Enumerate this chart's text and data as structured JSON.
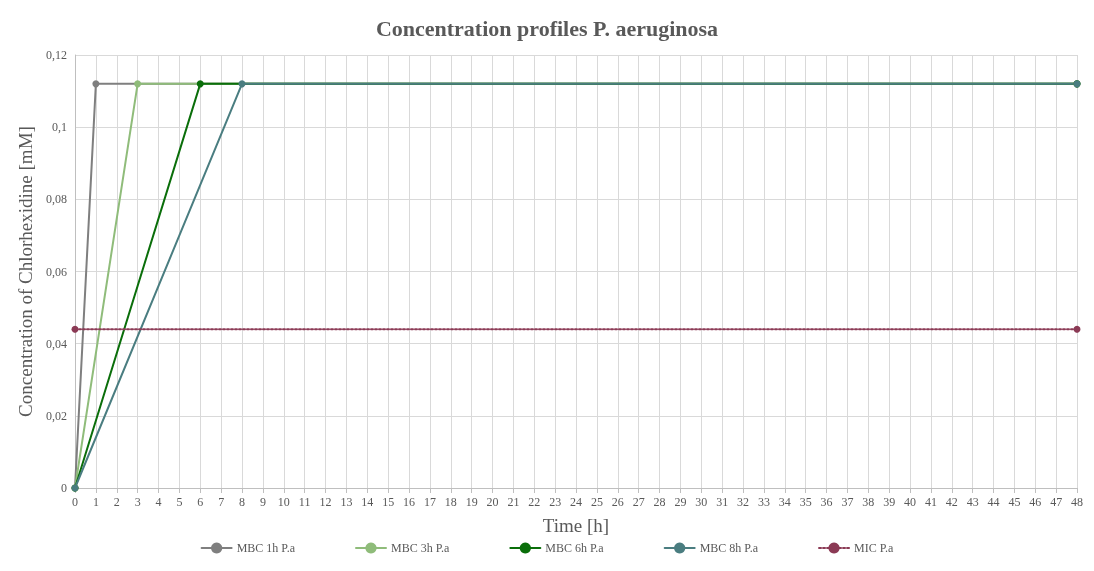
{
  "chart_data": {
    "type": "line",
    "title": "Concentration profiles P. aeruginosa",
    "xlabel": "Time [h]",
    "ylabel": "Concentration of Chlorhexidine [mM]",
    "xlim": [
      0,
      48
    ],
    "xticks": [
      0,
      1,
      2,
      3,
      4,
      5,
      6,
      7,
      8,
      9,
      10,
      11,
      12,
      13,
      14,
      15,
      16,
      17,
      18,
      19,
      20,
      21,
      22,
      23,
      24,
      25,
      26,
      27,
      28,
      29,
      30,
      31,
      32,
      33,
      34,
      35,
      36,
      37,
      38,
      39,
      40,
      41,
      42,
      43,
      44,
      45,
      46,
      47,
      48
    ],
    "ylim": [
      0,
      0.12
    ],
    "yticks": [
      0,
      {
        "value": 0.02,
        "label": "0,02"
      },
      {
        "value": 0.04,
        "label": "0,04"
      },
      {
        "value": 0.06,
        "label": "0,06"
      },
      {
        "value": 0.08,
        "label": "0,08"
      },
      {
        "value": 0.1,
        "label": "0,1"
      },
      {
        "value": 0.12,
        "label": "0,12"
      }
    ],
    "grid": true,
    "legend": "bottom",
    "marker": "circle",
    "line_style": "solid",
    "series": [
      {
        "name": "MBC 1h P.a",
        "color": "#7f7f7f",
        "x": [
          0,
          1,
          48
        ],
        "values": [
          0,
          0.112,
          0.112
        ]
      },
      {
        "name": "MBC 3h P.a",
        "color": "#8fbc7a",
        "x": [
          0,
          3,
          48
        ],
        "values": [
          0,
          0.112,
          0.112
        ]
      },
      {
        "name": "MBC 6h P.a",
        "color": "#0a6e0a",
        "x": [
          0,
          6,
          48
        ],
        "values": [
          0,
          0.112,
          0.112
        ]
      },
      {
        "name": "MBC 8h P.a",
        "color": "#4a7d80",
        "x": [
          0,
          8,
          48
        ],
        "values": [
          0,
          0.112,
          0.112
        ]
      },
      {
        "name": "MIC P.a",
        "color": "#8b3a55",
        "x": [
          0,
          48
        ],
        "values": [
          0.044,
          0.044
        ],
        "line_style": "dotted"
      }
    ]
  }
}
